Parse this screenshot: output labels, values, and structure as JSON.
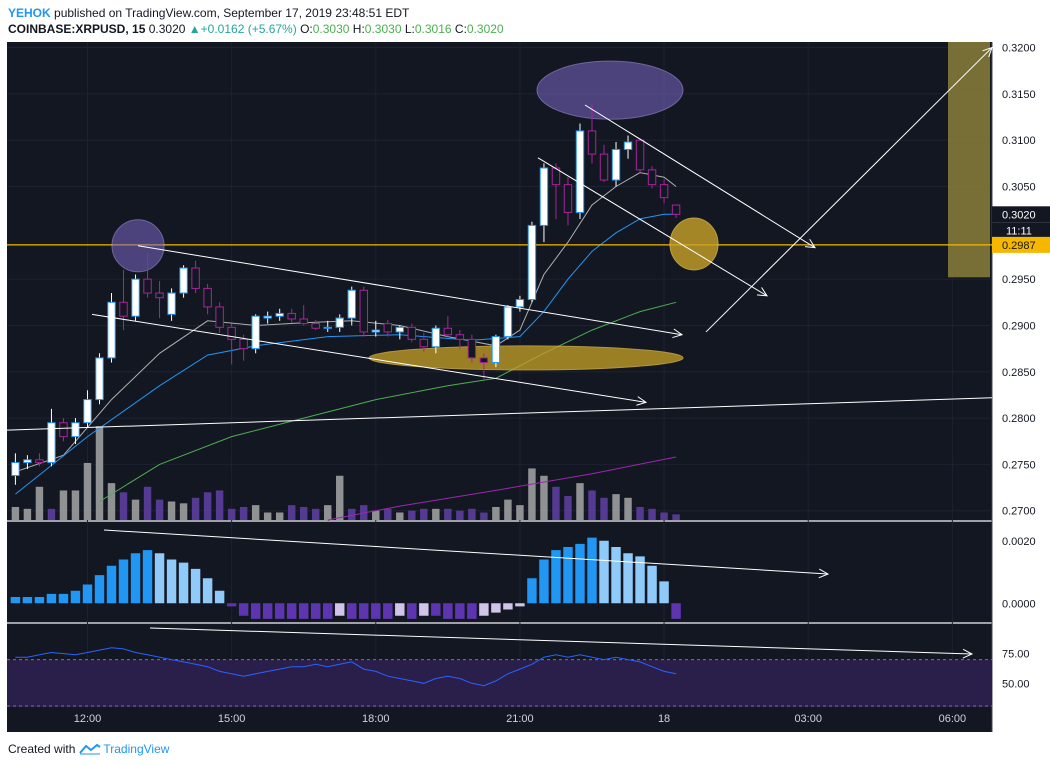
{
  "header": {
    "author": "YEHOK",
    "published_text": " published on TradingView.com, September 17, 2019 23:48:51 EDT",
    "symbol": "COINBASE:XRPUSD, 15",
    "price": "0.3020",
    "change": "+0.0162 (+5.67%)",
    "o_label": "O:",
    "o_value": "0.3030",
    "h_label": "H:",
    "h_value": "0.3030",
    "l_label": "L:",
    "l_value": "0.3016",
    "c_label": "C:",
    "c_value": "0.3020"
  },
  "footer": {
    "created_with": "Created with",
    "brand": "TradingView"
  },
  "colors": {
    "background": "#131722",
    "bull": "#ffffff",
    "bull_border": "#2196f3",
    "bear": "#a6259a",
    "level_line": "#f5b700",
    "ellipse_purple": "#7b68c9",
    "ellipse_yellow": "#c9a227",
    "zone": "#8a7f3a",
    "volume_up": "#9e9e9e",
    "volume_down": "#5c3e9e",
    "macd_up_strong": "#2196f3",
    "macd_up_weak": "#90caf9",
    "macd_down_strong": "#5e35b1",
    "macd_down_weak": "#d1c4e9",
    "rsi_line": "#2962ff",
    "rsi_fill": "#2a1f4a"
  },
  "chart_data": {
    "type": "candlestick",
    "price_axis": {
      "ticks": [
        "0.3200",
        "0.3150",
        "0.3100",
        "0.3050",
        "0.3020",
        "0.2987",
        "0.2950",
        "0.2900",
        "0.2850",
        "0.2800",
        "0.2750",
        "0.2700"
      ],
      "ylim": [
        0.269,
        0.3206
      ],
      "last_price_label": "0.3020",
      "countdown_label": "11:11",
      "level_label": "0.2987"
    },
    "level_price": 0.2987,
    "time_axis": {
      "ticks": [
        {
          "label": "12:00",
          "index": 6
        },
        {
          "label": "15:00",
          "index": 18
        },
        {
          "label": "18:00",
          "index": 30
        },
        {
          "label": "21:00",
          "index": 42
        },
        {
          "label": "18",
          "index": 54
        },
        {
          "label": "03:00",
          "index": 66
        },
        {
          "label": "06:00",
          "index": 78
        }
      ],
      "first_index": -0.7,
      "last_index": 81.3
    },
    "candles": [
      {
        "o": 0.2738,
        "h": 0.2762,
        "l": 0.2728,
        "c": 0.2752
      },
      {
        "o": 0.2752,
        "h": 0.276,
        "l": 0.2745,
        "c": 0.2755
      },
      {
        "o": 0.2755,
        "h": 0.2762,
        "l": 0.2748,
        "c": 0.2752
      },
      {
        "o": 0.2752,
        "h": 0.281,
        "l": 0.2748,
        "c": 0.2795
      },
      {
        "o": 0.2795,
        "h": 0.28,
        "l": 0.2775,
        "c": 0.278
      },
      {
        "o": 0.278,
        "h": 0.28,
        "l": 0.2772,
        "c": 0.2795
      },
      {
        "o": 0.2795,
        "h": 0.283,
        "l": 0.279,
        "c": 0.282
      },
      {
        "o": 0.282,
        "h": 0.287,
        "l": 0.2815,
        "c": 0.2865
      },
      {
        "o": 0.2865,
        "h": 0.2935,
        "l": 0.286,
        "c": 0.2925
      },
      {
        "o": 0.2925,
        "h": 0.296,
        "l": 0.2895,
        "c": 0.291
      },
      {
        "o": 0.291,
        "h": 0.2955,
        "l": 0.2905,
        "c": 0.295
      },
      {
        "o": 0.295,
        "h": 0.2978,
        "l": 0.293,
        "c": 0.2935
      },
      {
        "o": 0.2935,
        "h": 0.2948,
        "l": 0.2908,
        "c": 0.293
      },
      {
        "o": 0.2912,
        "h": 0.294,
        "l": 0.2905,
        "c": 0.2935
      },
      {
        "o": 0.2935,
        "h": 0.2965,
        "l": 0.293,
        "c": 0.2962
      },
      {
        "o": 0.2962,
        "h": 0.297,
        "l": 0.2935,
        "c": 0.294
      },
      {
        "o": 0.294,
        "h": 0.2945,
        "l": 0.2912,
        "c": 0.292
      },
      {
        "o": 0.292,
        "h": 0.2925,
        "l": 0.2892,
        "c": 0.2898
      },
      {
        "o": 0.2898,
        "h": 0.2902,
        "l": 0.2858,
        "c": 0.2885
      },
      {
        "o": 0.2885,
        "h": 0.289,
        "l": 0.2862,
        "c": 0.2875
      },
      {
        "o": 0.2875,
        "h": 0.2912,
        "l": 0.287,
        "c": 0.291
      },
      {
        "o": 0.2908,
        "h": 0.2915,
        "l": 0.2902,
        "c": 0.291
      },
      {
        "o": 0.291,
        "h": 0.2918,
        "l": 0.2905,
        "c": 0.2913
      },
      {
        "o": 0.2913,
        "h": 0.2918,
        "l": 0.2903,
        "c": 0.2907
      },
      {
        "o": 0.2907,
        "h": 0.2922,
        "l": 0.29,
        "c": 0.2902
      },
      {
        "o": 0.2902,
        "h": 0.2906,
        "l": 0.2895,
        "c": 0.2897
      },
      {
        "o": 0.2897,
        "h": 0.2905,
        "l": 0.2893,
        "c": 0.2898
      },
      {
        "o": 0.2898,
        "h": 0.2912,
        "l": 0.2893,
        "c": 0.2908
      },
      {
        "o": 0.2908,
        "h": 0.2942,
        "l": 0.29,
        "c": 0.2938
      },
      {
        "o": 0.2938,
        "h": 0.2942,
        "l": 0.2888,
        "c": 0.2893
      },
      {
        "o": 0.2893,
        "h": 0.2905,
        "l": 0.2888,
        "c": 0.2895
      },
      {
        "o": 0.2902,
        "h": 0.2906,
        "l": 0.2888,
        "c": 0.2893
      },
      {
        "o": 0.2893,
        "h": 0.29,
        "l": 0.2885,
        "c": 0.2898
      },
      {
        "o": 0.2898,
        "h": 0.2902,
        "l": 0.2882,
        "c": 0.2885
      },
      {
        "o": 0.2885,
        "h": 0.2892,
        "l": 0.2872,
        "c": 0.2877
      },
      {
        "o": 0.2877,
        "h": 0.29,
        "l": 0.287,
        "c": 0.2897
      },
      {
        "o": 0.2897,
        "h": 0.291,
        "l": 0.2887,
        "c": 0.289
      },
      {
        "o": 0.289,
        "h": 0.2895,
        "l": 0.2875,
        "c": 0.2885
      },
      {
        "o": 0.2885,
        "h": 0.289,
        "l": 0.286,
        "c": 0.2865
      },
      {
        "o": 0.2865,
        "h": 0.287,
        "l": 0.2842,
        "c": 0.286
      },
      {
        "o": 0.286,
        "h": 0.289,
        "l": 0.2855,
        "c": 0.2888
      },
      {
        "o": 0.2888,
        "h": 0.2922,
        "l": 0.2885,
        "c": 0.292
      },
      {
        "o": 0.292,
        "h": 0.2932,
        "l": 0.2915,
        "c": 0.2928
      },
      {
        "o": 0.2928,
        "h": 0.3012,
        "l": 0.2925,
        "c": 0.3008
      },
      {
        "o": 0.3008,
        "h": 0.3075,
        "l": 0.299,
        "c": 0.307
      },
      {
        "o": 0.307,
        "h": 0.3075,
        "l": 0.3015,
        "c": 0.3052
      },
      {
        "o": 0.3052,
        "h": 0.306,
        "l": 0.3008,
        "c": 0.3022
      },
      {
        "o": 0.3022,
        "h": 0.3118,
        "l": 0.3015,
        "c": 0.311
      },
      {
        "o": 0.311,
        "h": 0.314,
        "l": 0.3075,
        "c": 0.3085
      },
      {
        "o": 0.3085,
        "h": 0.3095,
        "l": 0.3055,
        "c": 0.3057
      },
      {
        "o": 0.3057,
        "h": 0.3098,
        "l": 0.305,
        "c": 0.309
      },
      {
        "o": 0.309,
        "h": 0.3105,
        "l": 0.308,
        "c": 0.3098
      },
      {
        "o": 0.31,
        "h": 0.3102,
        "l": 0.3065,
        "c": 0.3068
      },
      {
        "o": 0.3068,
        "h": 0.3072,
        "l": 0.3048,
        "c": 0.3052
      },
      {
        "o": 0.3052,
        "h": 0.3058,
        "l": 0.3032,
        "c": 0.3038
      },
      {
        "o": 0.303,
        "h": 0.303,
        "l": 0.3016,
        "c": 0.302
      }
    ],
    "moving_averages": [
      {
        "color": "#b0b0b0",
        "values": [
          [
            0,
            0.2742
          ],
          [
            4,
            0.276
          ],
          [
            8,
            0.282
          ],
          [
            12,
            0.287
          ],
          [
            16,
            0.2905
          ],
          [
            20,
            0.29
          ],
          [
            24,
            0.2903
          ],
          [
            28,
            0.2905
          ],
          [
            32,
            0.29
          ],
          [
            36,
            0.2888
          ],
          [
            40,
            0.2878
          ],
          [
            42,
            0.2895
          ],
          [
            44,
            0.2955
          ],
          [
            46,
            0.299
          ],
          [
            48,
            0.303
          ],
          [
            50,
            0.305
          ],
          [
            52,
            0.3065
          ],
          [
            54,
            0.306
          ],
          [
            55,
            0.305
          ]
        ]
      },
      {
        "color": "#2196f3",
        "values": [
          [
            0,
            0.2718
          ],
          [
            6,
            0.278
          ],
          [
            12,
            0.2835
          ],
          [
            16,
            0.2868
          ],
          [
            20,
            0.2878
          ],
          [
            26,
            0.2888
          ],
          [
            32,
            0.289
          ],
          [
            38,
            0.2884
          ],
          [
            42,
            0.2888
          ],
          [
            44,
            0.2915
          ],
          [
            46,
            0.295
          ],
          [
            48,
            0.298
          ],
          [
            50,
            0.3
          ],
          [
            52,
            0.3015
          ],
          [
            54,
            0.302
          ],
          [
            55,
            0.302
          ]
        ]
      },
      {
        "color": "#4caf50",
        "values": [
          [
            7,
            0.271
          ],
          [
            12,
            0.275
          ],
          [
            18,
            0.278
          ],
          [
            24,
            0.28
          ],
          [
            30,
            0.282
          ],
          [
            36,
            0.2835
          ],
          [
            40,
            0.2843
          ],
          [
            44,
            0.287
          ],
          [
            48,
            0.2895
          ],
          [
            52,
            0.2915
          ],
          [
            55,
            0.2925
          ]
        ]
      },
      {
        "color": "#9c27b0",
        "values": [
          [
            26,
            0.269
          ],
          [
            32,
            0.2705
          ],
          [
            40,
            0.2722
          ],
          [
            48,
            0.274
          ],
          [
            55,
            0.2758
          ]
        ]
      }
    ],
    "volume": [
      {
        "v": 0.12,
        "up": true
      },
      {
        "v": 0.1,
        "up": true
      },
      {
        "v": 0.34,
        "up": true
      },
      {
        "v": 0.1,
        "up": false
      },
      {
        "v": 0.3,
        "up": true
      },
      {
        "v": 0.3,
        "up": true
      },
      {
        "v": 0.6,
        "up": true
      },
      {
        "v": 1.0,
        "up": true
      },
      {
        "v": 0.38,
        "up": true
      },
      {
        "v": 0.28,
        "up": false
      },
      {
        "v": 0.2,
        "up": true
      },
      {
        "v": 0.34,
        "up": false
      },
      {
        "v": 0.2,
        "up": false
      },
      {
        "v": 0.18,
        "up": true
      },
      {
        "v": 0.16,
        "up": true
      },
      {
        "v": 0.22,
        "up": false
      },
      {
        "v": 0.28,
        "up": false
      },
      {
        "v": 0.3,
        "up": false
      },
      {
        "v": 0.1,
        "up": false
      },
      {
        "v": 0.12,
        "up": false
      },
      {
        "v": 0.14,
        "up": true
      },
      {
        "v": 0.06,
        "up": true
      },
      {
        "v": 0.06,
        "up": true
      },
      {
        "v": 0.14,
        "up": false
      },
      {
        "v": 0.12,
        "up": false
      },
      {
        "v": 0.1,
        "up": false
      },
      {
        "v": 0.14,
        "up": true
      },
      {
        "v": 0.46,
        "up": true
      },
      {
        "v": 0.1,
        "up": false
      },
      {
        "v": 0.14,
        "up": false
      },
      {
        "v": 0.08,
        "up": true
      },
      {
        "v": 0.1,
        "up": false
      },
      {
        "v": 0.06,
        "up": true
      },
      {
        "v": 0.08,
        "up": false
      },
      {
        "v": 0.1,
        "up": false
      },
      {
        "v": 0.1,
        "up": true
      },
      {
        "v": 0.1,
        "up": false
      },
      {
        "v": 0.08,
        "up": false
      },
      {
        "v": 0.1,
        "up": false
      },
      {
        "v": 0.06,
        "up": false
      },
      {
        "v": 0.12,
        "up": true
      },
      {
        "v": 0.2,
        "up": true
      },
      {
        "v": 0.14,
        "up": true
      },
      {
        "v": 0.54,
        "up": true
      },
      {
        "v": 0.46,
        "up": true
      },
      {
        "v": 0.34,
        "up": false
      },
      {
        "v": 0.24,
        "up": false
      },
      {
        "v": 0.38,
        "up": true
      },
      {
        "v": 0.3,
        "up": false
      },
      {
        "v": 0.22,
        "up": false
      },
      {
        "v": 0.26,
        "up": true
      },
      {
        "v": 0.22,
        "up": true
      },
      {
        "v": 0.12,
        "up": false
      },
      {
        "v": 0.1,
        "up": false
      },
      {
        "v": 0.06,
        "up": false
      },
      {
        "v": 0.04,
        "up": false
      }
    ],
    "macd": {
      "ticks": [
        "0.0020",
        "0.0000"
      ],
      "ylim": [
        -0.0006,
        0.0026
      ],
      "histogram": [
        0.0002,
        0.0002,
        0.0002,
        0.0003,
        0.0003,
        0.0004,
        0.0006,
        0.0009,
        0.0012,
        0.0014,
        0.0016,
        0.0017,
        0.0016,
        0.0014,
        0.0013,
        0.0011,
        0.0008,
        0.0004,
        -0.0001,
        -0.0004,
        -0.0005,
        -0.0005,
        -0.0005,
        -0.0005,
        -0.0005,
        -0.0005,
        -0.0005,
        -0.0004,
        -0.0005,
        -0.0005,
        -0.0005,
        -0.0005,
        -0.0004,
        -0.0005,
        -0.0004,
        -0.0004,
        -0.0005,
        -0.0005,
        -0.0005,
        -0.0004,
        -0.0003,
        -0.0002,
        -0.0001,
        0.0008,
        0.0014,
        0.0017,
        0.0018,
        0.0019,
        0.0021,
        0.002,
        0.0018,
        0.0016,
        0.0015,
        0.0012,
        0.0007,
        -0.0005
      ]
    },
    "rsi": {
      "ticks": [
        "75.00",
        "50.00"
      ],
      "ylim": [
        30,
        100
      ],
      "band_upper": 70,
      "band_lower": 30,
      "values": [
        72,
        72,
        74,
        76,
        75,
        74,
        76,
        78,
        80,
        79,
        76,
        74,
        72,
        70,
        68,
        66,
        64,
        60,
        58,
        56,
        58,
        60,
        62,
        64,
        64,
        66,
        64,
        66,
        68,
        62,
        60,
        56,
        54,
        52,
        50,
        54,
        56,
        54,
        50,
        48,
        52,
        58,
        62,
        66,
        72,
        74,
        72,
        74,
        72,
        70,
        72,
        70,
        68,
        64,
        60,
        58
      ]
    }
  }
}
